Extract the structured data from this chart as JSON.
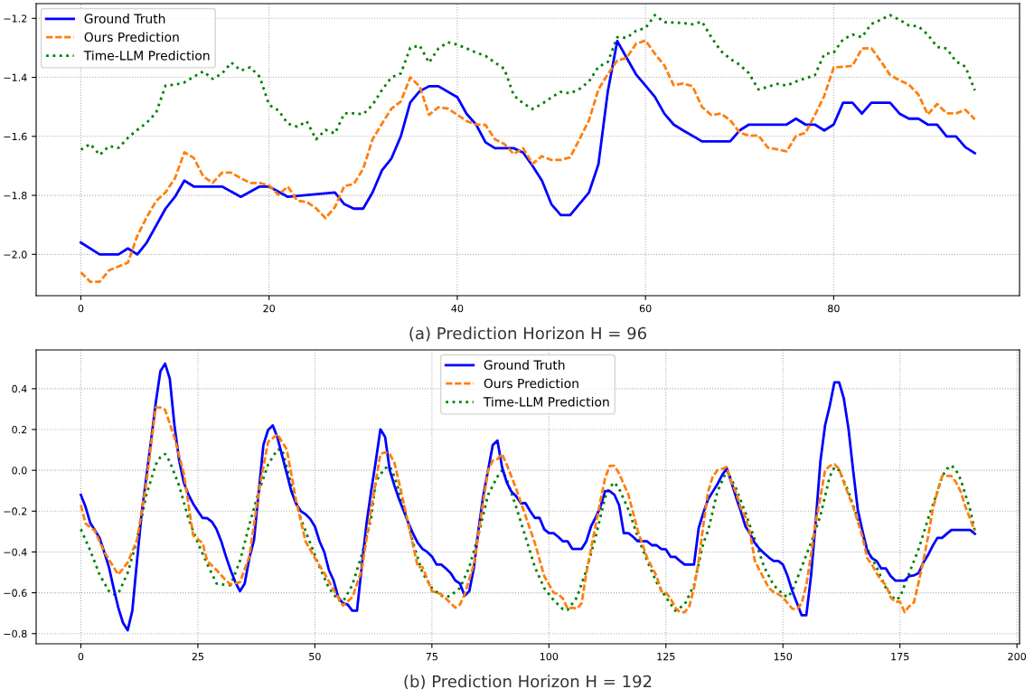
{
  "chart_data": [
    {
      "type": "line",
      "xlabel": "(a) Prediction Horizon H = 96",
      "xlim": [
        -4.75,
        99.75
      ],
      "xticks": [
        0,
        20,
        40,
        60,
        80
      ],
      "ylim": [
        -2.14,
        -1.15
      ],
      "yticks": [
        {
          "value": -2.0,
          "label": "−2.0"
        },
        {
          "value": -1.8,
          "label": "−1.8"
        },
        {
          "value": -1.6,
          "label": "−1.6"
        },
        {
          "value": -1.4,
          "label": "−1.4"
        },
        {
          "value": -1.2,
          "label": "−1.2"
        }
      ],
      "grid": true,
      "legend": "top left",
      "series": [
        {
          "name": "Ground Truth",
          "color": "#0000ff",
          "line_style": "solid",
          "x": [
            0,
            2,
            4,
            5,
            6,
            7,
            9,
            10,
            11,
            12,
            15,
            17,
            19,
            20,
            22,
            27,
            28,
            29,
            30,
            31,
            32,
            33,
            34,
            35,
            36,
            37,
            38,
            40,
            41,
            42,
            43,
            44,
            46,
            47,
            48,
            49,
            50,
            51,
            52,
            54,
            55,
            56,
            57,
            58,
            59,
            60,
            61,
            62,
            63,
            64,
            65,
            66,
            69,
            70,
            71,
            75,
            76,
            77,
            78,
            79,
            80,
            81,
            82,
            83,
            84,
            86,
            87,
            88,
            89,
            90,
            91,
            92,
            93,
            94,
            95
          ],
          "values": [
            -1.96,
            -2.0,
            -2.0,
            -1.98,
            -2.0,
            -1.96,
            -1.845,
            -1.805,
            -1.75,
            -1.77,
            -1.77,
            -1.805,
            -1.77,
            -1.77,
            -1.805,
            -1.79,
            -1.83,
            -1.845,
            -1.845,
            -1.79,
            -1.715,
            -1.675,
            -1.6,
            -1.485,
            -1.447,
            -1.43,
            -1.43,
            -1.467,
            -1.524,
            -1.56,
            -1.62,
            -1.64,
            -1.64,
            -1.655,
            -1.7,
            -1.75,
            -1.83,
            -1.867,
            -1.867,
            -1.79,
            -1.695,
            -1.447,
            -1.277,
            -1.334,
            -1.39,
            -1.428,
            -1.466,
            -1.523,
            -1.56,
            -1.58,
            -1.598,
            -1.617,
            -1.617,
            -1.58,
            -1.56,
            -1.56,
            -1.54,
            -1.56,
            -1.56,
            -1.58,
            -1.56,
            -1.486,
            -1.486,
            -1.523,
            -1.486,
            -1.486,
            -1.523,
            -1.54,
            -1.54,
            -1.56,
            -1.56,
            -1.6,
            -1.6,
            -1.637,
            -1.657
          ]
        },
        {
          "name": "Ours Prediction",
          "color": "#ff7f0e",
          "line_style": "dashed",
          "x": [
            0,
            1,
            2,
            3,
            4,
            5,
            6,
            7,
            8,
            9,
            10,
            11,
            12,
            13,
            14,
            15,
            16,
            17,
            18,
            19,
            20,
            21,
            22,
            23,
            24,
            25,
            26,
            27,
            28,
            29,
            30,
            31,
            32,
            33,
            34,
            35,
            36,
            37,
            38,
            39,
            40,
            41,
            42,
            43,
            44,
            45,
            46,
            47,
            48,
            49,
            50,
            51,
            52,
            53,
            54,
            55,
            56,
            57,
            58,
            59,
            60,
            61,
            62,
            63,
            64,
            65,
            66,
            67,
            68,
            69,
            70,
            71,
            72,
            73,
            74,
            75,
            76,
            77,
            78,
            79,
            80,
            81,
            82,
            83,
            84,
            85,
            86,
            87,
            88,
            89,
            90,
            91,
            92,
            93,
            94,
            95
          ],
          "values": [
            -2.061,
            -2.093,
            -2.093,
            -2.054,
            -2.041,
            -2.028,
            -1.937,
            -1.874,
            -1.819,
            -1.79,
            -1.742,
            -1.654,
            -1.673,
            -1.735,
            -1.758,
            -1.723,
            -1.723,
            -1.742,
            -1.758,
            -1.758,
            -1.766,
            -1.798,
            -1.77,
            -1.818,
            -1.822,
            -1.844,
            -1.877,
            -1.84,
            -1.768,
            -1.762,
            -1.71,
            -1.61,
            -1.557,
            -1.506,
            -1.482,
            -1.4,
            -1.43,
            -1.527,
            -1.501,
            -1.506,
            -1.527,
            -1.548,
            -1.56,
            -1.561,
            -1.61,
            -1.626,
            -1.66,
            -1.64,
            -1.693,
            -1.667,
            -1.68,
            -1.68,
            -1.671,
            -1.609,
            -1.545,
            -1.441,
            -1.389,
            -1.343,
            -1.334,
            -1.286,
            -1.275,
            -1.32,
            -1.359,
            -1.427,
            -1.421,
            -1.43,
            -1.5,
            -1.528,
            -1.523,
            -1.545,
            -1.587,
            -1.598,
            -1.597,
            -1.638,
            -1.644,
            -1.651,
            -1.598,
            -1.588,
            -1.528,
            -1.463,
            -1.366,
            -1.364,
            -1.361,
            -1.302,
            -1.301,
            -1.345,
            -1.392,
            -1.41,
            -1.425,
            -1.458,
            -1.526,
            -1.49,
            -1.522,
            -1.522,
            -1.51,
            -1.542
          ]
        },
        {
          "name": "Time-LLM Prediction",
          "color": "#008000",
          "line_style": "dotted",
          "x": [
            0,
            1,
            2,
            3,
            4,
            5,
            6,
            7,
            8,
            9,
            10,
            11,
            12,
            13,
            14,
            15,
            16,
            17,
            18,
            19,
            20,
            21,
            22,
            23,
            24,
            25,
            26,
            27,
            28,
            29,
            30,
            31,
            32,
            33,
            34,
            35,
            36,
            37,
            38,
            39,
            40,
            41,
            42,
            43,
            44,
            45,
            46,
            47,
            48,
            49,
            50,
            51,
            52,
            53,
            54,
            55,
            56,
            57,
            58,
            59,
            60,
            61,
            62,
            63,
            64,
            65,
            66,
            67,
            68,
            69,
            70,
            71,
            72,
            73,
            74,
            75,
            76,
            77,
            78,
            79,
            80,
            81,
            82,
            83,
            84,
            85,
            86,
            87,
            88,
            89,
            90,
            91,
            92,
            93,
            94,
            95
          ],
          "values": [
            -1.645,
            -1.626,
            -1.663,
            -1.633,
            -1.639,
            -1.605,
            -1.578,
            -1.554,
            -1.52,
            -1.428,
            -1.425,
            -1.417,
            -1.398,
            -1.38,
            -1.405,
            -1.387,
            -1.35,
            -1.377,
            -1.366,
            -1.398,
            -1.493,
            -1.512,
            -1.557,
            -1.567,
            -1.549,
            -1.61,
            -1.578,
            -1.59,
            -1.522,
            -1.522,
            -1.525,
            -1.493,
            -1.443,
            -1.4,
            -1.387,
            -1.3,
            -1.292,
            -1.35,
            -1.302,
            -1.281,
            -1.289,
            -1.302,
            -1.316,
            -1.327,
            -1.35,
            -1.371,
            -1.461,
            -1.488,
            -1.507,
            -1.49,
            -1.468,
            -1.449,
            -1.454,
            -1.439,
            -1.414,
            -1.364,
            -1.348,
            -1.264,
            -1.266,
            -1.242,
            -1.233,
            -1.189,
            -1.213,
            -1.214,
            -1.216,
            -1.22,
            -1.211,
            -1.264,
            -1.31,
            -1.337,
            -1.357,
            -1.386,
            -1.441,
            -1.432,
            -1.422,
            -1.428,
            -1.414,
            -1.403,
            -1.393,
            -1.321,
            -1.316,
            -1.271,
            -1.255,
            -1.264,
            -1.219,
            -1.205,
            -1.189,
            -1.205,
            -1.224,
            -1.227,
            -1.255,
            -1.297,
            -1.302,
            -1.346,
            -1.364,
            -1.444
          ]
        }
      ]
    },
    {
      "type": "line",
      "xlabel": "(b) Prediction Horizon H = 192",
      "xlim": [
        -9.55,
        200.55
      ],
      "xticks": [
        0,
        25,
        50,
        75,
        100,
        125,
        150,
        175,
        200
      ],
      "ylim": [
        -0.85,
        0.59
      ],
      "yticks": [
        {
          "value": -0.8,
          "label": "−0.8"
        },
        {
          "value": -0.6,
          "label": "−0.6"
        },
        {
          "value": -0.4,
          "label": "−0.4"
        },
        {
          "value": -0.2,
          "label": "−0.2"
        },
        {
          "value": 0.0,
          "label": "0.0"
        },
        {
          "value": 0.2,
          "label": "0.2"
        },
        {
          "value": 0.4,
          "label": "0.4"
        }
      ],
      "grid": true,
      "legend": "top",
      "series": [
        {
          "name": "Ground Truth",
          "color": "#0000ff",
          "line_style": "solid",
          "x": [
            0,
            1,
            2,
            3,
            4,
            5,
            6,
            7,
            8,
            9,
            10,
            11,
            12,
            13,
            14,
            15,
            16,
            17,
            18,
            19,
            20,
            21,
            22,
            23,
            24,
            25,
            26,
            27,
            28,
            29,
            30,
            31,
            32,
            33,
            34,
            35,
            36,
            37,
            38,
            39,
            40,
            41,
            42,
            43,
            44,
            45,
            46,
            47,
            48,
            49,
            50,
            51,
            52,
            53,
            54,
            55,
            56,
            57,
            58,
            59,
            60,
            61,
            62,
            63,
            64,
            65,
            66,
            67,
            68,
            69,
            70,
            71,
            72,
            73,
            74,
            75,
            76,
            77,
            78,
            79,
            80,
            81,
            82,
            83,
            84,
            85,
            86,
            87,
            88,
            89,
            90,
            91,
            92,
            93,
            94,
            95,
            96,
            97,
            98,
            99,
            100,
            101,
            102,
            103,
            104,
            105,
            106,
            107,
            108,
            109,
            110,
            111,
            112,
            113,
            114,
            115,
            116,
            117,
            118,
            119,
            120,
            121,
            122,
            123,
            124,
            125,
            126,
            127,
            128,
            129,
            130,
            131,
            132,
            133,
            134,
            135,
            136,
            137,
            138,
            139,
            140,
            141,
            142,
            143,
            144,
            145,
            146,
            147,
            148,
            149,
            150,
            151,
            152,
            153,
            154,
            155,
            156,
            157,
            158,
            159,
            160,
            161,
            162,
            163,
            164,
            165,
            166,
            167,
            168,
            169,
            170,
            171,
            172,
            173,
            174,
            175,
            176,
            177,
            178,
            179,
            180,
            181,
            182,
            183,
            184,
            185,
            186,
            187,
            188,
            189,
            190,
            191
          ],
          "values": [
            -0.12,
            -0.179,
            -0.257,
            -0.294,
            -0.331,
            -0.4,
            -0.474,
            -0.577,
            -0.673,
            -0.747,
            -0.784,
            -0.688,
            -0.444,
            -0.208,
            -0.031,
            0.146,
            0.331,
            0.486,
            0.523,
            0.449,
            0.22,
            0.05,
            -0.06,
            -0.12,
            -0.164,
            -0.2,
            -0.233,
            -0.235,
            -0.252,
            -0.289,
            -0.348,
            -0.422,
            -0.489,
            -0.548,
            -0.592,
            -0.555,
            -0.43,
            -0.341,
            -0.105,
            0.124,
            0.198,
            0.22,
            0.161,
            0.072,
            -0.016,
            -0.105,
            -0.164,
            -0.2,
            -0.215,
            -0.238,
            -0.275,
            -0.348,
            -0.4,
            -0.489,
            -0.54,
            -0.622,
            -0.651,
            -0.658,
            -0.688,
            -0.688,
            -0.474,
            -0.267,
            -0.105,
            0.043,
            0.201,
            0.164,
            0.0,
            -0.075,
            -0.142,
            -0.2,
            -0.26,
            -0.311,
            -0.356,
            -0.385,
            -0.4,
            -0.422,
            -0.462,
            -0.462,
            -0.481,
            -0.503,
            -0.54,
            -0.555,
            -0.614,
            -0.592,
            -0.474,
            -0.282,
            -0.12,
            0.0,
            0.124,
            0.146,
            0.015,
            -0.06,
            -0.105,
            -0.127,
            -0.161,
            -0.161,
            -0.2,
            -0.233,
            -0.233,
            -0.289,
            -0.308,
            -0.308,
            -0.326,
            -0.348,
            -0.348,
            -0.385,
            -0.385,
            -0.385,
            -0.348,
            -0.275,
            -0.23,
            -0.179,
            -0.102,
            -0.102,
            -0.12,
            -0.171,
            -0.308,
            -0.308,
            -0.326,
            -0.348,
            -0.348,
            -0.348,
            -0.367,
            -0.367,
            -0.385,
            -0.388,
            -0.424,
            -0.424,
            -0.444,
            -0.462,
            -0.462,
            -0.462,
            -0.282,
            -0.208,
            -0.142,
            -0.105,
            -0.068,
            -0.024,
            0.01,
            -0.059,
            -0.133,
            -0.2,
            -0.275,
            -0.311,
            -0.356,
            -0.385,
            -0.407,
            -0.427,
            -0.444,
            -0.444,
            -0.462,
            -0.518,
            -0.592,
            -0.651,
            -0.71,
            -0.71,
            -0.518,
            -0.252,
            0.043,
            0.22,
            0.316,
            0.431,
            0.431,
            0.353,
            0.205,
            0.0,
            -0.193,
            -0.297,
            -0.393,
            -0.43,
            -0.444,
            -0.481,
            -0.481,
            -0.518,
            -0.54,
            -0.54,
            -0.54,
            -0.518,
            -0.515,
            -0.503,
            -0.452,
            -0.415,
            -0.37,
            -0.331,
            -0.331,
            -0.311,
            -0.292,
            -0.292,
            -0.292,
            -0.292,
            -0.292,
            -0.311
          ]
        },
        {
          "name": "Ours Prediction",
          "color": "#ff7f0e",
          "line_style": "dashed",
          "x": [
            0,
            1,
            3,
            5,
            7,
            8,
            10,
            12,
            14,
            16,
            17,
            18,
            20,
            22,
            24,
            26,
            27,
            29,
            31,
            32,
            34,
            36,
            38,
            40,
            42,
            43,
            44,
            46,
            48,
            50,
            52,
            54,
            56,
            58,
            60,
            62,
            64,
            65,
            66,
            67,
            68,
            70,
            72,
            73,
            75,
            77,
            78,
            79,
            80,
            81,
            82,
            84,
            86,
            87,
            88,
            89,
            90,
            91,
            93,
            95,
            97,
            99,
            101,
            102,
            103,
            104,
            105,
            106,
            107,
            108,
            110,
            111,
            112,
            113,
            114,
            115,
            117,
            119,
            121,
            123,
            124,
            125,
            126,
            127,
            128,
            129,
            130,
            131,
            132,
            133,
            134,
            135,
            136,
            137,
            138,
            139,
            140,
            141,
            142,
            143,
            144,
            145,
            146,
            147,
            148,
            149,
            150,
            151,
            152,
            153,
            154,
            155,
            156,
            157,
            158,
            159,
            160,
            161,
            162,
            163,
            164,
            165,
            166,
            167,
            168,
            169,
            170,
            171,
            172,
            173,
            174,
            175,
            176,
            177,
            178,
            179,
            180,
            181,
            182,
            183,
            184,
            185,
            186,
            187,
            188,
            189,
            190,
            191
          ],
          "values": [
            -0.171,
            -0.26,
            -0.297,
            -0.4,
            -0.474,
            -0.511,
            -0.452,
            -0.341,
            -0.06,
            0.308,
            0.308,
            0.297,
            0.161,
            -0.016,
            -0.319,
            -0.356,
            -0.444,
            -0.489,
            -0.54,
            -0.559,
            -0.548,
            -0.422,
            -0.105,
            0.139,
            0.176,
            0.139,
            0.102,
            -0.149,
            -0.348,
            -0.43,
            -0.503,
            -0.585,
            -0.663,
            -0.622,
            -0.489,
            -0.193,
            0.08,
            0.088,
            0.08,
            0.037,
            -0.06,
            -0.267,
            -0.474,
            -0.474,
            -0.592,
            -0.607,
            -0.629,
            -0.651,
            -0.673,
            -0.658,
            -0.607,
            -0.459,
            -0.149,
            0.0,
            0.047,
            0.055,
            0.08,
            0.028,
            -0.09,
            -0.223,
            -0.356,
            -0.518,
            -0.599,
            -0.607,
            -0.629,
            -0.678,
            -0.673,
            -0.678,
            -0.651,
            -0.503,
            -0.267,
            -0.149,
            -0.039,
            0.022,
            0.022,
            -0.016,
            -0.12,
            -0.297,
            -0.43,
            -0.518,
            -0.592,
            -0.599,
            -0.629,
            -0.673,
            -0.695,
            -0.695,
            -0.666,
            -0.577,
            -0.444,
            -0.267,
            -0.105,
            -0.031,
            0.0,
            0.007,
            0.016,
            -0.059,
            -0.11,
            -0.184,
            -0.23,
            -0.311,
            -0.444,
            -0.489,
            -0.533,
            -0.577,
            -0.596,
            -0.607,
            -0.622,
            -0.651,
            -0.678,
            -0.681,
            -0.651,
            -0.562,
            -0.415,
            -0.252,
            -0.133,
            0.0,
            0.022,
            0.03,
            0.007,
            -0.059,
            -0.12,
            -0.179,
            -0.252,
            -0.326,
            -0.43,
            -0.462,
            -0.503,
            -0.54,
            -0.562,
            -0.622,
            -0.644,
            -0.644,
            -0.695,
            -0.666,
            -0.647,
            -0.548,
            -0.444,
            -0.326,
            -0.193,
            -0.105,
            -0.028,
            -0.028,
            -0.028,
            -0.059,
            -0.105,
            -0.179,
            -0.238,
            -0.297
          ]
        },
        {
          "name": "Time-LLM Prediction",
          "color": "#008000",
          "line_style": "dotted",
          "x": [
            0,
            2,
            4,
            6,
            7,
            8,
            10,
            12,
            14,
            16,
            17,
            18,
            19,
            21,
            23,
            25,
            27,
            29,
            31,
            32,
            34,
            36,
            38,
            40,
            42,
            43,
            45,
            47,
            49,
            51,
            53,
            55,
            56,
            58,
            60,
            62,
            63,
            64,
            65,
            66,
            67,
            69,
            71,
            73,
            75,
            77,
            78,
            79,
            81,
            83,
            85,
            87,
            89,
            90,
            91,
            93,
            95,
            97,
            99,
            101,
            103,
            104,
            106,
            108,
            110,
            112,
            113,
            114,
            115,
            117,
            119,
            121,
            123,
            125,
            127,
            129,
            131,
            133,
            134,
            136,
            138,
            140,
            142,
            144,
            146,
            148,
            150,
            151,
            152,
            154,
            156,
            158,
            160,
            161,
            162,
            164,
            166,
            168,
            170,
            172,
            174,
            175,
            177,
            179,
            181,
            183,
            184,
            185,
            186,
            187,
            188,
            190,
            191
          ],
          "values": [
            -0.289,
            -0.393,
            -0.511,
            -0.592,
            -0.607,
            -0.604,
            -0.503,
            -0.341,
            -0.12,
            0.028,
            0.065,
            0.08,
            0.043,
            -0.075,
            -0.238,
            -0.356,
            -0.459,
            -0.555,
            -0.562,
            -0.562,
            -0.444,
            -0.267,
            -0.105,
            0.028,
            0.102,
            0.102,
            -0.075,
            -0.238,
            -0.356,
            -0.474,
            -0.577,
            -0.636,
            -0.644,
            -0.562,
            -0.415,
            -0.238,
            -0.055,
            -0.02,
            0.01,
            0.02,
            -0.031,
            -0.179,
            -0.356,
            -0.503,
            -0.577,
            -0.614,
            -0.622,
            -0.614,
            -0.577,
            -0.474,
            -0.311,
            -0.12,
            -0.031,
            0.0,
            -0.046,
            -0.179,
            -0.326,
            -0.474,
            -0.577,
            -0.636,
            -0.681,
            -0.684,
            -0.622,
            -0.489,
            -0.326,
            -0.133,
            -0.083,
            -0.059,
            -0.09,
            -0.193,
            -0.326,
            -0.444,
            -0.548,
            -0.622,
            -0.688,
            -0.658,
            -0.562,
            -0.356,
            -0.297,
            -0.105,
            0.0,
            -0.09,
            -0.208,
            -0.341,
            -0.474,
            -0.562,
            -0.607,
            -0.622,
            -0.592,
            -0.474,
            -0.356,
            -0.223,
            -0.031,
            0.015,
            0.0,
            -0.105,
            -0.238,
            -0.385,
            -0.474,
            -0.577,
            -0.636,
            -0.622,
            -0.503,
            -0.385,
            -0.238,
            -0.105,
            -0.031,
            0.007,
            0.024,
            0.0,
            -0.046,
            -0.193,
            -0.297
          ]
        }
      ]
    }
  ]
}
